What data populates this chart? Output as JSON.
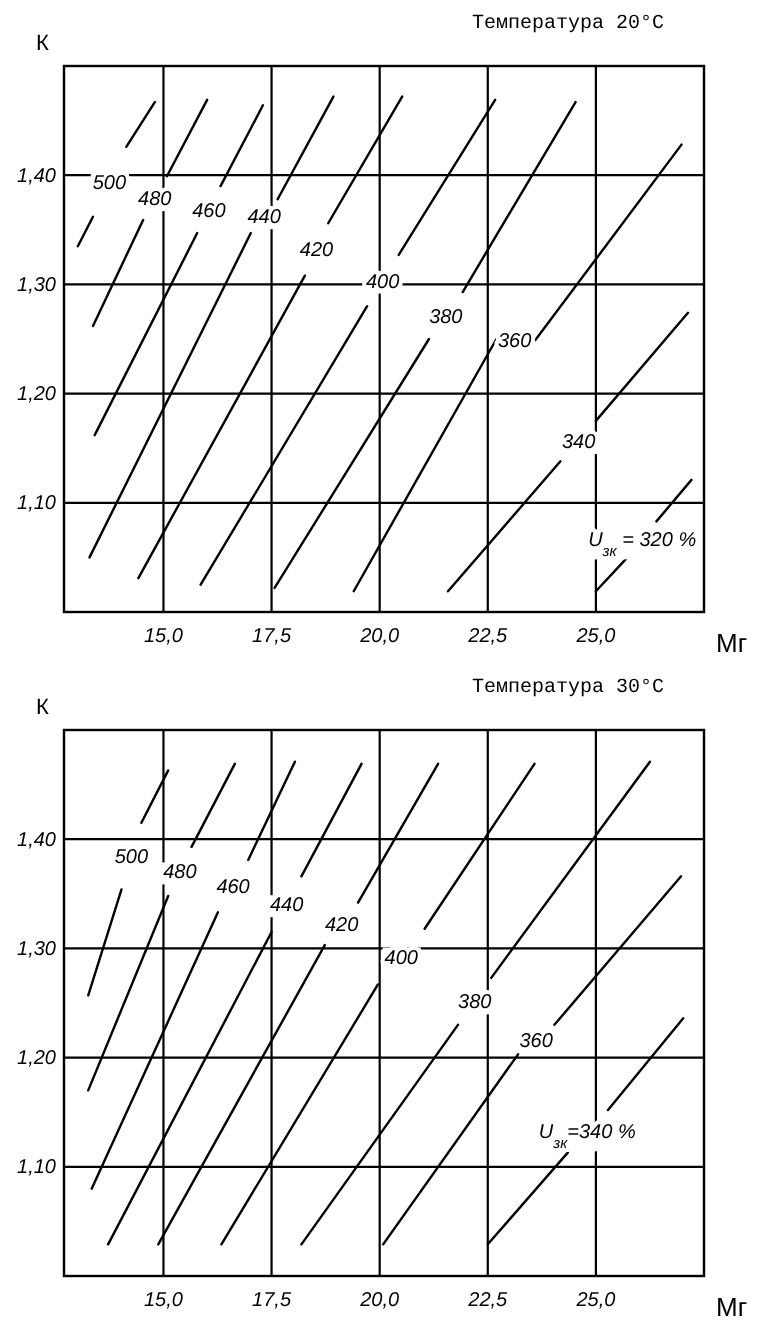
{
  "chart_data": [
    {
      "type": "line",
      "title": "Температура 20°C",
      "xlabel": "Мг",
      "ylabel": "К",
      "xlim": [
        12.7,
        27.5
      ],
      "ylim": [
        1.0,
        1.5
      ],
      "xticks": [
        {
          "value": 15,
          "label": "15,0"
        },
        {
          "value": 17.5,
          "label": "17,5"
        },
        {
          "value": 20,
          "label": "20,0"
        },
        {
          "value": 22.5,
          "label": "22,5"
        },
        {
          "value": 25,
          "label": "25,0"
        }
      ],
      "yticks": [
        {
          "value": 1.1,
          "label": "1,10"
        },
        {
          "value": 1.2,
          "label": "1,20"
        },
        {
          "value": 1.3,
          "label": "1,30"
        },
        {
          "value": 1.4,
          "label": "1,40"
        }
      ],
      "grid": true,
      "series": [
        {
          "name": "500",
          "color": "#000000",
          "x": [
            13.02,
            13.37,
            13.75,
            14.14,
            14.8
          ],
          "values": [
            1.335,
            1.362,
            null,
            1.426,
            1.467
          ]
        },
        {
          "name": "480",
          "color": "#000000",
          "x": [
            13.37,
            14.53,
            14.8,
            15.08,
            16.01
          ],
          "values": [
            1.262,
            1.359,
            null,
            1.399,
            1.469
          ]
        },
        {
          "name": "460",
          "color": "#000000",
          "x": [
            13.41,
            15.78,
            16.05,
            16.32,
            17.3
          ],
          "values": [
            1.162,
            1.347,
            null,
            1.39,
            1.464
          ]
        },
        {
          "name": "440",
          "color": "#000000",
          "x": [
            13.29,
            17.02,
            17.33,
            17.64,
            18.93
          ],
          "values": [
            1.05,
            1.347,
            null,
            1.378,
            1.472
          ]
        },
        {
          "name": "420",
          "color": "#000000",
          "x": [
            14.42,
            18.27,
            18.54,
            18.81,
            20.52
          ],
          "values": [
            1.031,
            1.308,
            null,
            1.356,
            1.472
          ]
        },
        {
          "name": "400",
          "color": "#000000",
          "x": [
            15.86,
            19.71,
            20.07,
            20.44,
            22.67
          ],
          "values": [
            1.025,
            1.28,
            null,
            1.327,
            1.469
          ]
        },
        {
          "name": "380",
          "color": "#000000",
          "x": [
            17.57,
            21.14,
            21.53,
            21.92,
            24.53
          ],
          "values": [
            1.022,
            1.25,
            null,
            1.293,
            1.467
          ]
        },
        {
          "name": "360",
          "color": "#000000",
          "x": [
            19.4,
            22.7,
            23.12,
            23.6,
            26.98
          ],
          "values": [
            1.019,
            1.25,
            null,
            1.249,
            1.428
          ]
        },
        {
          "name": "340",
          "color": "#000000",
          "x": [
            21.58,
            24.18,
            24.6,
            25.0,
            27.13
          ],
          "values": [
            1.019,
            1.138,
            null,
            1.175,
            1.274
          ]
        },
        {
          "name": "U$_{зк}$ = 320 %",
          "color": "#000000",
          "x": [
            25.0,
            25.73,
            26.07,
            26.4,
            27.21
          ],
          "values": [
            1.019,
            1.05,
            null,
            1.083,
            1.121
          ]
        }
      ]
    },
    {
      "type": "line",
      "title": "Температура 30°С",
      "xlabel": "Мг",
      "ylabel": "К",
      "xlim": [
        12.7,
        27.5
      ],
      "ylim": [
        1.0,
        1.5
      ],
      "xticks": [
        {
          "value": 15,
          "label": "15,0"
        },
        {
          "value": 17.5,
          "label": "17,5"
        },
        {
          "value": 20,
          "label": "20,0"
        },
        {
          "value": 22.5,
          "label": "22,5"
        },
        {
          "value": 25,
          "label": "25,0"
        }
      ],
      "yticks": [
        {
          "value": 1.1,
          "label": "1,10"
        },
        {
          "value": 1.2,
          "label": "1,20"
        },
        {
          "value": 1.3,
          "label": "1,30"
        },
        {
          "value": 1.4,
          "label": "1,40"
        }
      ],
      "grid": true,
      "series": [
        {
          "name": "500",
          "color": "#000000",
          "x": [
            13.26,
            14.03,
            14.26,
            14.49,
            15.11
          ],
          "values": [
            1.257,
            1.354,
            null,
            1.415,
            1.463
          ]
        },
        {
          "name": "480",
          "color": "#000000",
          "x": [
            13.26,
            15.11,
            15.38,
            15.65,
            16.65
          ],
          "values": [
            1.17,
            1.348,
            null,
            1.393,
            1.469
          ]
        },
        {
          "name": "460",
          "color": "#000000",
          "x": [
            13.34,
            16.26,
            16.61,
            16.96,
            18.04
          ],
          "values": [
            1.08,
            1.333,
            null,
            1.381,
            1.471
          ]
        },
        {
          "name": "440",
          "color": "#000000",
          "x": [
            13.72,
            17.5,
            17.85,
            18.19,
            19.58
          ],
          "values": [
            1.029,
            1.315,
            null,
            1.366,
            1.469
          ]
        },
        {
          "name": "420",
          "color": "#000000",
          "x": [
            14.88,
            18.73,
            19.12,
            19.5,
            21.35
          ],
          "values": [
            1.029,
            1.303,
            null,
            1.342,
            1.469
          ]
        },
        {
          "name": "400",
          "color": "#000000",
          "x": [
            16.34,
            19.96,
            20.5,
            21.04,
            23.58
          ],
          "values": [
            1.029,
            1.267,
            null,
            1.318,
            1.469
          ]
        },
        {
          "name": "380",
          "color": "#000000",
          "x": [
            18.19,
            21.81,
            22.2,
            22.58,
            26.25
          ],
          "values": [
            1.029,
            1.23,
            null,
            1.273,
            1.471
          ]
        },
        {
          "name": "360",
          "color": "#000000",
          "x": [
            20.08,
            23.2,
            23.62,
            24.04,
            26.97
          ],
          "values": [
            1.029,
            1.203,
            null,
            1.23,
            1.366
          ]
        },
        {
          "name": "U$_{зк}$=340 %",
          "color": "#000000",
          "x": [
            22.5,
            24.35,
            24.8,
            25.28,
            27.02
          ],
          "values": [
            1.029,
            1.113,
            null,
            1.152,
            1.236
          ]
        }
      ]
    }
  ]
}
